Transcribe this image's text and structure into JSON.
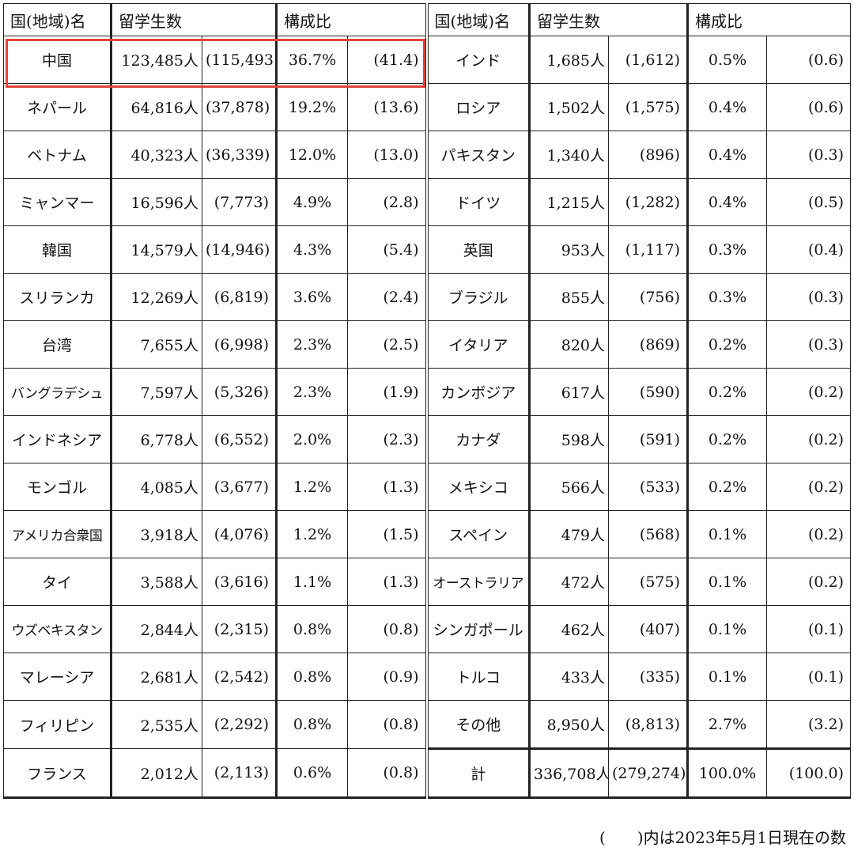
{
  "headers": {
    "left": {
      "name": "国(地域)名",
      "count": "留学生数",
      "ratio": "構成比"
    },
    "right": {
      "name": "国(地域)名",
      "count": "留学生数",
      "ratio": "構成比"
    }
  },
  "rows_left": [
    {
      "name": "中国",
      "count": "123,485人",
      "prev": "(115,493)",
      "pct": "36.7%",
      "prev_pct": "(41.4)"
    },
    {
      "name": "ネパール",
      "count": "64,816人",
      "prev": "(37,878)",
      "pct": "19.2%",
      "prev_pct": "(13.6)"
    },
    {
      "name": "ベトナム",
      "count": "40,323人",
      "prev": "(36,339)",
      "pct": "12.0%",
      "prev_pct": "(13.0)"
    },
    {
      "name": "ミャンマー",
      "count": "16,596人",
      "prev": "(7,773)",
      "pct": "4.9%",
      "prev_pct": "(2.8)"
    },
    {
      "name": "韓国",
      "count": "14,579人",
      "prev": "(14,946)",
      "pct": "4.3%",
      "prev_pct": "(5.4)"
    },
    {
      "name": "スリランカ",
      "count": "12,269人",
      "prev": "(6,819)",
      "pct": "3.6%",
      "prev_pct": "(2.4)"
    },
    {
      "name": "台湾",
      "count": "7,655人",
      "prev": "(6,998)",
      "pct": "2.3%",
      "prev_pct": "(2.5)"
    },
    {
      "name": "バングラデシュ",
      "count": "7,597人",
      "prev": "(5,326)",
      "pct": "2.3%",
      "prev_pct": "(1.9)"
    },
    {
      "name": "インドネシア",
      "count": "6,778人",
      "prev": "(6,552)",
      "pct": "2.0%",
      "prev_pct": "(2.3)"
    },
    {
      "name": "モンゴル",
      "count": "4,085人",
      "prev": "(3,677)",
      "pct": "1.2%",
      "prev_pct": "(1.3)"
    },
    {
      "name": "アメリカ合衆国",
      "count": "3,918人",
      "prev": "(4,076)",
      "pct": "1.2%",
      "prev_pct": "(1.5)"
    },
    {
      "name": "タイ",
      "count": "3,588人",
      "prev": "(3,616)",
      "pct": "1.1%",
      "prev_pct": "(1.3)"
    },
    {
      "name": "ウズベキスタン",
      "count": "2,844人",
      "prev": "(2,315)",
      "pct": "0.8%",
      "prev_pct": "(0.8)"
    },
    {
      "name": "マレーシア",
      "count": "2,681人",
      "prev": "(2,542)",
      "pct": "0.8%",
      "prev_pct": "(0.9)"
    },
    {
      "name": "フィリピン",
      "count": "2,535人",
      "prev": "(2,292)",
      "pct": "0.8%",
      "prev_pct": "(0.8)"
    },
    {
      "name": "フランス",
      "count": "2,012人",
      "prev": "(2,113)",
      "pct": "0.6%",
      "prev_pct": "(0.8)"
    }
  ],
  "rows_right": [
    {
      "name": "インド",
      "count": "1,685人",
      "prev": "(1,612)",
      "pct": "0.5%",
      "prev_pct": "(0.6)"
    },
    {
      "name": "ロシア",
      "count": "1,502人",
      "prev": "(1,575)",
      "pct": "0.4%",
      "prev_pct": "(0.6)"
    },
    {
      "name": "パキスタン",
      "count": "1,340人",
      "prev": "(896)",
      "pct": "0.4%",
      "prev_pct": "(0.3)"
    },
    {
      "name": "ドイツ",
      "count": "1,215人",
      "prev": "(1,282)",
      "pct": "0.4%",
      "prev_pct": "(0.5)"
    },
    {
      "name": "英国",
      "count": "953人",
      "prev": "(1,117)",
      "pct": "0.3%",
      "prev_pct": "(0.4)"
    },
    {
      "name": "ブラジル",
      "count": "855人",
      "prev": "(756)",
      "pct": "0.3%",
      "prev_pct": "(0.3)"
    },
    {
      "name": "イタリア",
      "count": "820人",
      "prev": "(869)",
      "pct": "0.2%",
      "prev_pct": "(0.3)"
    },
    {
      "name": "カンボジア",
      "count": "617人",
      "prev": "(590)",
      "pct": "0.2%",
      "prev_pct": "(0.2)"
    },
    {
      "name": "カナダ",
      "count": "598人",
      "prev": "(591)",
      "pct": "0.2%",
      "prev_pct": "(0.2)"
    },
    {
      "name": "メキシコ",
      "count": "566人",
      "prev": "(533)",
      "pct": "0.2%",
      "prev_pct": "(0.2)"
    },
    {
      "name": "スペイン",
      "count": "479人",
      "prev": "(568)",
      "pct": "0.1%",
      "prev_pct": "(0.2)"
    },
    {
      "name": "オーストラリア",
      "count": "472人",
      "prev": "(575)",
      "pct": "0.1%",
      "prev_pct": "(0.2)"
    },
    {
      "name": "シンガポール",
      "count": "462人",
      "prev": "(407)",
      "pct": "0.1%",
      "prev_pct": "(0.1)"
    },
    {
      "name": "トルコ",
      "count": "433人",
      "prev": "(335)",
      "pct": "0.1%",
      "prev_pct": "(0.1)"
    },
    {
      "name": "その他",
      "count": "8,950人",
      "prev": "(8,813)",
      "pct": "2.7%",
      "prev_pct": "(3.2)"
    },
    {
      "name": "計",
      "count": "336,708人",
      "prev": "(279,274)",
      "pct": "100.0%",
      "prev_pct": "(100.0)"
    }
  ],
  "footnote": "(　　)内は2023年5月1日現在の数",
  "colors": {
    "highlight": "#e0453a",
    "border": "#222222"
  }
}
